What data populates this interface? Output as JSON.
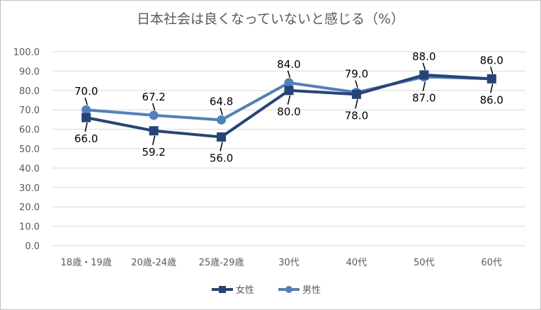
{
  "chart_data": {
    "type": "line",
    "title": "日本社会は良くなっていないと感じる（%）",
    "categories": [
      "18歳・19歳",
      "20歳-24歳",
      "25歳-29歳",
      "30代",
      "40代",
      "50代",
      "60代"
    ],
    "series": [
      {
        "name": "女性",
        "values": [
          66.0,
          59.2,
          56.0,
          80.0,
          78.0,
          88.0,
          86.0
        ],
        "labels": [
          "66.0",
          "59.2",
          "56.0",
          "80.0",
          "78.0",
          "88.0",
          "86.0"
        ],
        "color": "#264478",
        "marker": "square"
      },
      {
        "name": "男性",
        "values": [
          70.0,
          67.2,
          64.8,
          84.0,
          79.0,
          87.0,
          86.0
        ],
        "labels": [
          "70.0",
          "67.2",
          "64.8",
          "84.0",
          "79.0",
          "87.0",
          "86.0"
        ],
        "color": "#4f81bd",
        "marker": "circle"
      }
    ],
    "yticks": [
      "0.0",
      "10.0",
      "20.0",
      "30.0",
      "40.0",
      "50.0",
      "60.0",
      "70.0",
      "80.0",
      "90.0",
      "100.0"
    ],
    "ylim": [
      0,
      100
    ],
    "grid": true,
    "legend": "bottom"
  }
}
